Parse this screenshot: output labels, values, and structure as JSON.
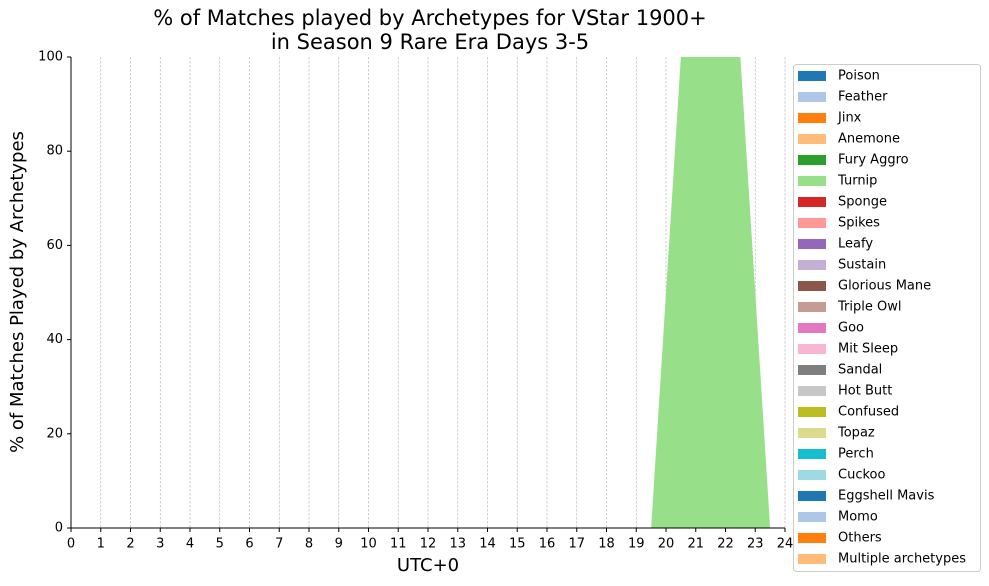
{
  "chart_data": {
    "type": "stacked-area",
    "title": [
      "% of Matches played by Archetypes for VStar 1900+",
      "in Season 9 Rare Era Days 3-5"
    ],
    "x_label": "UTC+0",
    "y_label": "% of Matches Played by Archetypes",
    "x": [
      0.5,
      1.5,
      2.5,
      3.5,
      4.5,
      5.5,
      6.5,
      7.5,
      8.5,
      9.5,
      10.5,
      11.5,
      12.5,
      13.5,
      14.5,
      15.5,
      16.5,
      17.5,
      18.5,
      19.5,
      20.5,
      21.5,
      22.5,
      23.5
    ],
    "xlim": [
      0,
      24
    ],
    "xticks": [
      0,
      1,
      2,
      3,
      4,
      5,
      6,
      7,
      8,
      9,
      10,
      11,
      12,
      13,
      14,
      15,
      16,
      17,
      18,
      19,
      20,
      21,
      22,
      23,
      24
    ],
    "ylim": [
      0,
      100
    ],
    "yticks": [
      0,
      20,
      40,
      60,
      80,
      100
    ],
    "grid": "x",
    "legend": "right",
    "series": [
      {
        "name": "Poison",
        "color": "#1f77b4",
        "values": [
          0,
          0,
          0,
          0,
          0,
          0,
          0,
          0,
          0,
          0,
          0,
          0,
          0,
          0,
          0,
          0,
          0,
          0,
          0,
          0,
          0,
          0,
          0,
          0
        ]
      },
      {
        "name": "Feather",
        "color": "#aec7e8",
        "values": [
          0,
          0,
          0,
          0,
          0,
          0,
          0,
          0,
          0,
          0,
          0,
          0,
          0,
          0,
          0,
          0,
          0,
          0,
          0,
          0,
          0,
          0,
          0,
          0
        ]
      },
      {
        "name": "Jinx",
        "color": "#ff7f0e",
        "values": [
          0,
          0,
          0,
          0,
          0,
          0,
          0,
          0,
          0,
          0,
          0,
          0,
          0,
          0,
          0,
          0,
          0,
          0,
          0,
          0,
          0,
          0,
          0,
          0
        ]
      },
      {
        "name": "Anemone",
        "color": "#ffbb78",
        "values": [
          0,
          0,
          0,
          0,
          0,
          0,
          0,
          0,
          0,
          0,
          0,
          0,
          0,
          0,
          0,
          0,
          0,
          0,
          0,
          0,
          0,
          0,
          0,
          0
        ]
      },
      {
        "name": "Fury Aggro",
        "color": "#2ca02c",
        "values": [
          0,
          0,
          0,
          0,
          0,
          0,
          0,
          0,
          0,
          0,
          0,
          0,
          0,
          0,
          0,
          0,
          0,
          0,
          0,
          0,
          0,
          0,
          0,
          0
        ]
      },
      {
        "name": "Turnip",
        "color": "#98df8a",
        "values": [
          0,
          0,
          0,
          0,
          0,
          0,
          0,
          0,
          0,
          0,
          0,
          0,
          0,
          0,
          0,
          0,
          0,
          0,
          0,
          0,
          100,
          100,
          100,
          0
        ]
      },
      {
        "name": "Sponge",
        "color": "#d62728",
        "values": [
          0,
          0,
          0,
          0,
          0,
          0,
          0,
          0,
          0,
          0,
          0,
          0,
          0,
          0,
          0,
          0,
          0,
          0,
          0,
          0,
          0,
          0,
          0,
          0
        ]
      },
      {
        "name": "Spikes",
        "color": "#ff9896",
        "values": [
          0,
          0,
          0,
          0,
          0,
          0,
          0,
          0,
          0,
          0,
          0,
          0,
          0,
          0,
          0,
          0,
          0,
          0,
          0,
          0,
          0,
          0,
          0,
          0
        ]
      },
      {
        "name": "Leafy",
        "color": "#9467bd",
        "values": [
          0,
          0,
          0,
          0,
          0,
          0,
          0,
          0,
          0,
          0,
          0,
          0,
          0,
          0,
          0,
          0,
          0,
          0,
          0,
          0,
          0,
          0,
          0,
          0
        ]
      },
      {
        "name": "Sustain",
        "color": "#c5b0d5",
        "values": [
          0,
          0,
          0,
          0,
          0,
          0,
          0,
          0,
          0,
          0,
          0,
          0,
          0,
          0,
          0,
          0,
          0,
          0,
          0,
          0,
          0,
          0,
          0,
          0
        ]
      },
      {
        "name": "Glorious Mane",
        "color": "#8c564b",
        "values": [
          0,
          0,
          0,
          0,
          0,
          0,
          0,
          0,
          0,
          0,
          0,
          0,
          0,
          0,
          0,
          0,
          0,
          0,
          0,
          0,
          0,
          0,
          0,
          0
        ]
      },
      {
        "name": "Triple Owl",
        "color": "#c49c94",
        "values": [
          0,
          0,
          0,
          0,
          0,
          0,
          0,
          0,
          0,
          0,
          0,
          0,
          0,
          0,
          0,
          0,
          0,
          0,
          0,
          0,
          0,
          0,
          0,
          0
        ]
      },
      {
        "name": "Goo",
        "color": "#e377c2",
        "values": [
          0,
          0,
          0,
          0,
          0,
          0,
          0,
          0,
          0,
          0,
          0,
          0,
          0,
          0,
          0,
          0,
          0,
          0,
          0,
          0,
          0,
          0,
          0,
          0
        ]
      },
      {
        "name": "Mit Sleep",
        "color": "#f7b6d2",
        "values": [
          0,
          0,
          0,
          0,
          0,
          0,
          0,
          0,
          0,
          0,
          0,
          0,
          0,
          0,
          0,
          0,
          0,
          0,
          0,
          0,
          0,
          0,
          0,
          0
        ]
      },
      {
        "name": "Sandal",
        "color": "#7f7f7f",
        "values": [
          0,
          0,
          0,
          0,
          0,
          0,
          0,
          0,
          0,
          0,
          0,
          0,
          0,
          0,
          0,
          0,
          0,
          0,
          0,
          0,
          0,
          0,
          0,
          0
        ]
      },
      {
        "name": "Hot Butt",
        "color": "#c7c7c7",
        "values": [
          0,
          0,
          0,
          0,
          0,
          0,
          0,
          0,
          0,
          0,
          0,
          0,
          0,
          0,
          0,
          0,
          0,
          0,
          0,
          0,
          0,
          0,
          0,
          0
        ]
      },
      {
        "name": "Confused",
        "color": "#bcbd22",
        "values": [
          0,
          0,
          0,
          0,
          0,
          0,
          0,
          0,
          0,
          0,
          0,
          0,
          0,
          0,
          0,
          0,
          0,
          0,
          0,
          0,
          0,
          0,
          0,
          0
        ]
      },
      {
        "name": "Topaz",
        "color": "#dbdb8d",
        "values": [
          0,
          0,
          0,
          0,
          0,
          0,
          0,
          0,
          0,
          0,
          0,
          0,
          0,
          0,
          0,
          0,
          0,
          0,
          0,
          0,
          0,
          0,
          0,
          0
        ]
      },
      {
        "name": "Perch",
        "color": "#17becf",
        "values": [
          0,
          0,
          0,
          0,
          0,
          0,
          0,
          0,
          0,
          0,
          0,
          0,
          0,
          0,
          0,
          0,
          0,
          0,
          0,
          0,
          0,
          0,
          0,
          0
        ]
      },
      {
        "name": "Cuckoo",
        "color": "#9edae5",
        "values": [
          0,
          0,
          0,
          0,
          0,
          0,
          0,
          0,
          0,
          0,
          0,
          0,
          0,
          0,
          0,
          0,
          0,
          0,
          0,
          0,
          0,
          0,
          0,
          0
        ]
      },
      {
        "name": "Eggshell Mavis",
        "color": "#1f77b4",
        "values": [
          0,
          0,
          0,
          0,
          0,
          0,
          0,
          0,
          0,
          0,
          0,
          0,
          0,
          0,
          0,
          0,
          0,
          0,
          0,
          0,
          0,
          0,
          0,
          0
        ]
      },
      {
        "name": "Momo",
        "color": "#aec7e8",
        "values": [
          0,
          0,
          0,
          0,
          0,
          0,
          0,
          0,
          0,
          0,
          0,
          0,
          0,
          0,
          0,
          0,
          0,
          0,
          0,
          0,
          0,
          0,
          0,
          0
        ]
      },
      {
        "name": "Others",
        "color": "#ff7f0e",
        "values": [
          0,
          0,
          0,
          0,
          0,
          0,
          0,
          0,
          0,
          0,
          0,
          0,
          0,
          0,
          0,
          0,
          0,
          0,
          0,
          0,
          0,
          0,
          0,
          0
        ]
      },
      {
        "name": "Multiple archetypes",
        "color": "#ffbb78",
        "values": [
          0,
          0,
          0,
          0,
          0,
          0,
          0,
          0,
          0,
          0,
          0,
          0,
          0,
          0,
          0,
          0,
          0,
          0,
          0,
          0,
          0,
          0,
          0,
          0
        ]
      }
    ]
  }
}
